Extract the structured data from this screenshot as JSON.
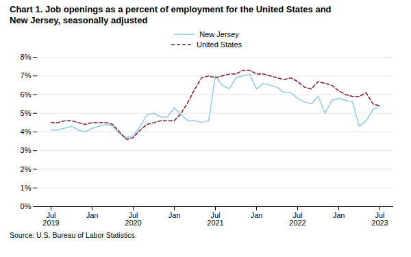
{
  "chart_data": {
    "type": "line",
    "title": "Chart 1. Job openings as a percent of employment for the United States and\nNew Jersey, seasonally adjusted",
    "caption": "Source: U.S. Bureau of Labor Statistics.",
    "categories": [
      "Jul\n2019",
      null,
      null,
      null,
      null,
      null,
      "Jan",
      null,
      null,
      null,
      null,
      null,
      "Jul\n2020",
      null,
      null,
      null,
      null,
      null,
      "Jan",
      null,
      null,
      null,
      null,
      null,
      "Jul\n2021",
      null,
      null,
      null,
      null,
      null,
      "Jan",
      null,
      null,
      null,
      null,
      null,
      "Jul\n2022",
      null,
      null,
      null,
      null,
      null,
      "Jan",
      null,
      null,
      null,
      null,
      null,
      "Jul\n2023"
    ],
    "series": [
      {
        "name": "New Jersey",
        "color": "#90C8E8",
        "line_style": "solid",
        "values": [
          4.1,
          4.1,
          4.2,
          4.3,
          4.1,
          4.0,
          4.2,
          4.3,
          4.4,
          4.3,
          3.9,
          3.7,
          3.8,
          4.3,
          4.9,
          5.0,
          4.8,
          4.8,
          5.3,
          4.9,
          4.6,
          4.6,
          4.5,
          4.6,
          7.0,
          6.5,
          6.3,
          6.9,
          7.0,
          7.1,
          6.3,
          6.6,
          6.5,
          6.4,
          6.1,
          6.1,
          5.8,
          5.6,
          5.5,
          5.9,
          5.0,
          5.7,
          5.8,
          5.7,
          5.6,
          4.3,
          4.6,
          5.2,
          5.4
        ]
      },
      {
        "name": "United States",
        "color": "#7B1530",
        "line_style": "dashed",
        "values": [
          4.5,
          4.5,
          4.6,
          4.6,
          4.5,
          4.4,
          4.5,
          4.5,
          4.5,
          4.4,
          4.0,
          3.6,
          3.7,
          4.1,
          4.4,
          4.5,
          4.6,
          4.6,
          4.6,
          5.0,
          5.6,
          6.3,
          6.9,
          7.0,
          6.9,
          7.0,
          7.1,
          7.1,
          7.3,
          7.3,
          7.1,
          7.1,
          7.0,
          6.9,
          6.8,
          6.9,
          6.7,
          6.4,
          6.3,
          6.7,
          6.6,
          6.5,
          6.2,
          6.0,
          5.9,
          5.9,
          6.1,
          5.5,
          5.4
        ]
      }
    ],
    "ylim": [
      0,
      8
    ],
    "yticks": [
      {
        "value": 0,
        "label": "0%"
      },
      {
        "value": 1,
        "label": "1%"
      },
      {
        "value": 2,
        "label": "2%"
      },
      {
        "value": 3,
        "label": "3%"
      },
      {
        "value": 4,
        "label": "4%"
      },
      {
        "value": 5,
        "label": "5%"
      },
      {
        "value": 6,
        "label": "6%"
      },
      {
        "value": 7,
        "label": "7%"
      },
      {
        "value": 8,
        "label": "8%"
      }
    ],
    "grid": true,
    "legend": "top"
  }
}
